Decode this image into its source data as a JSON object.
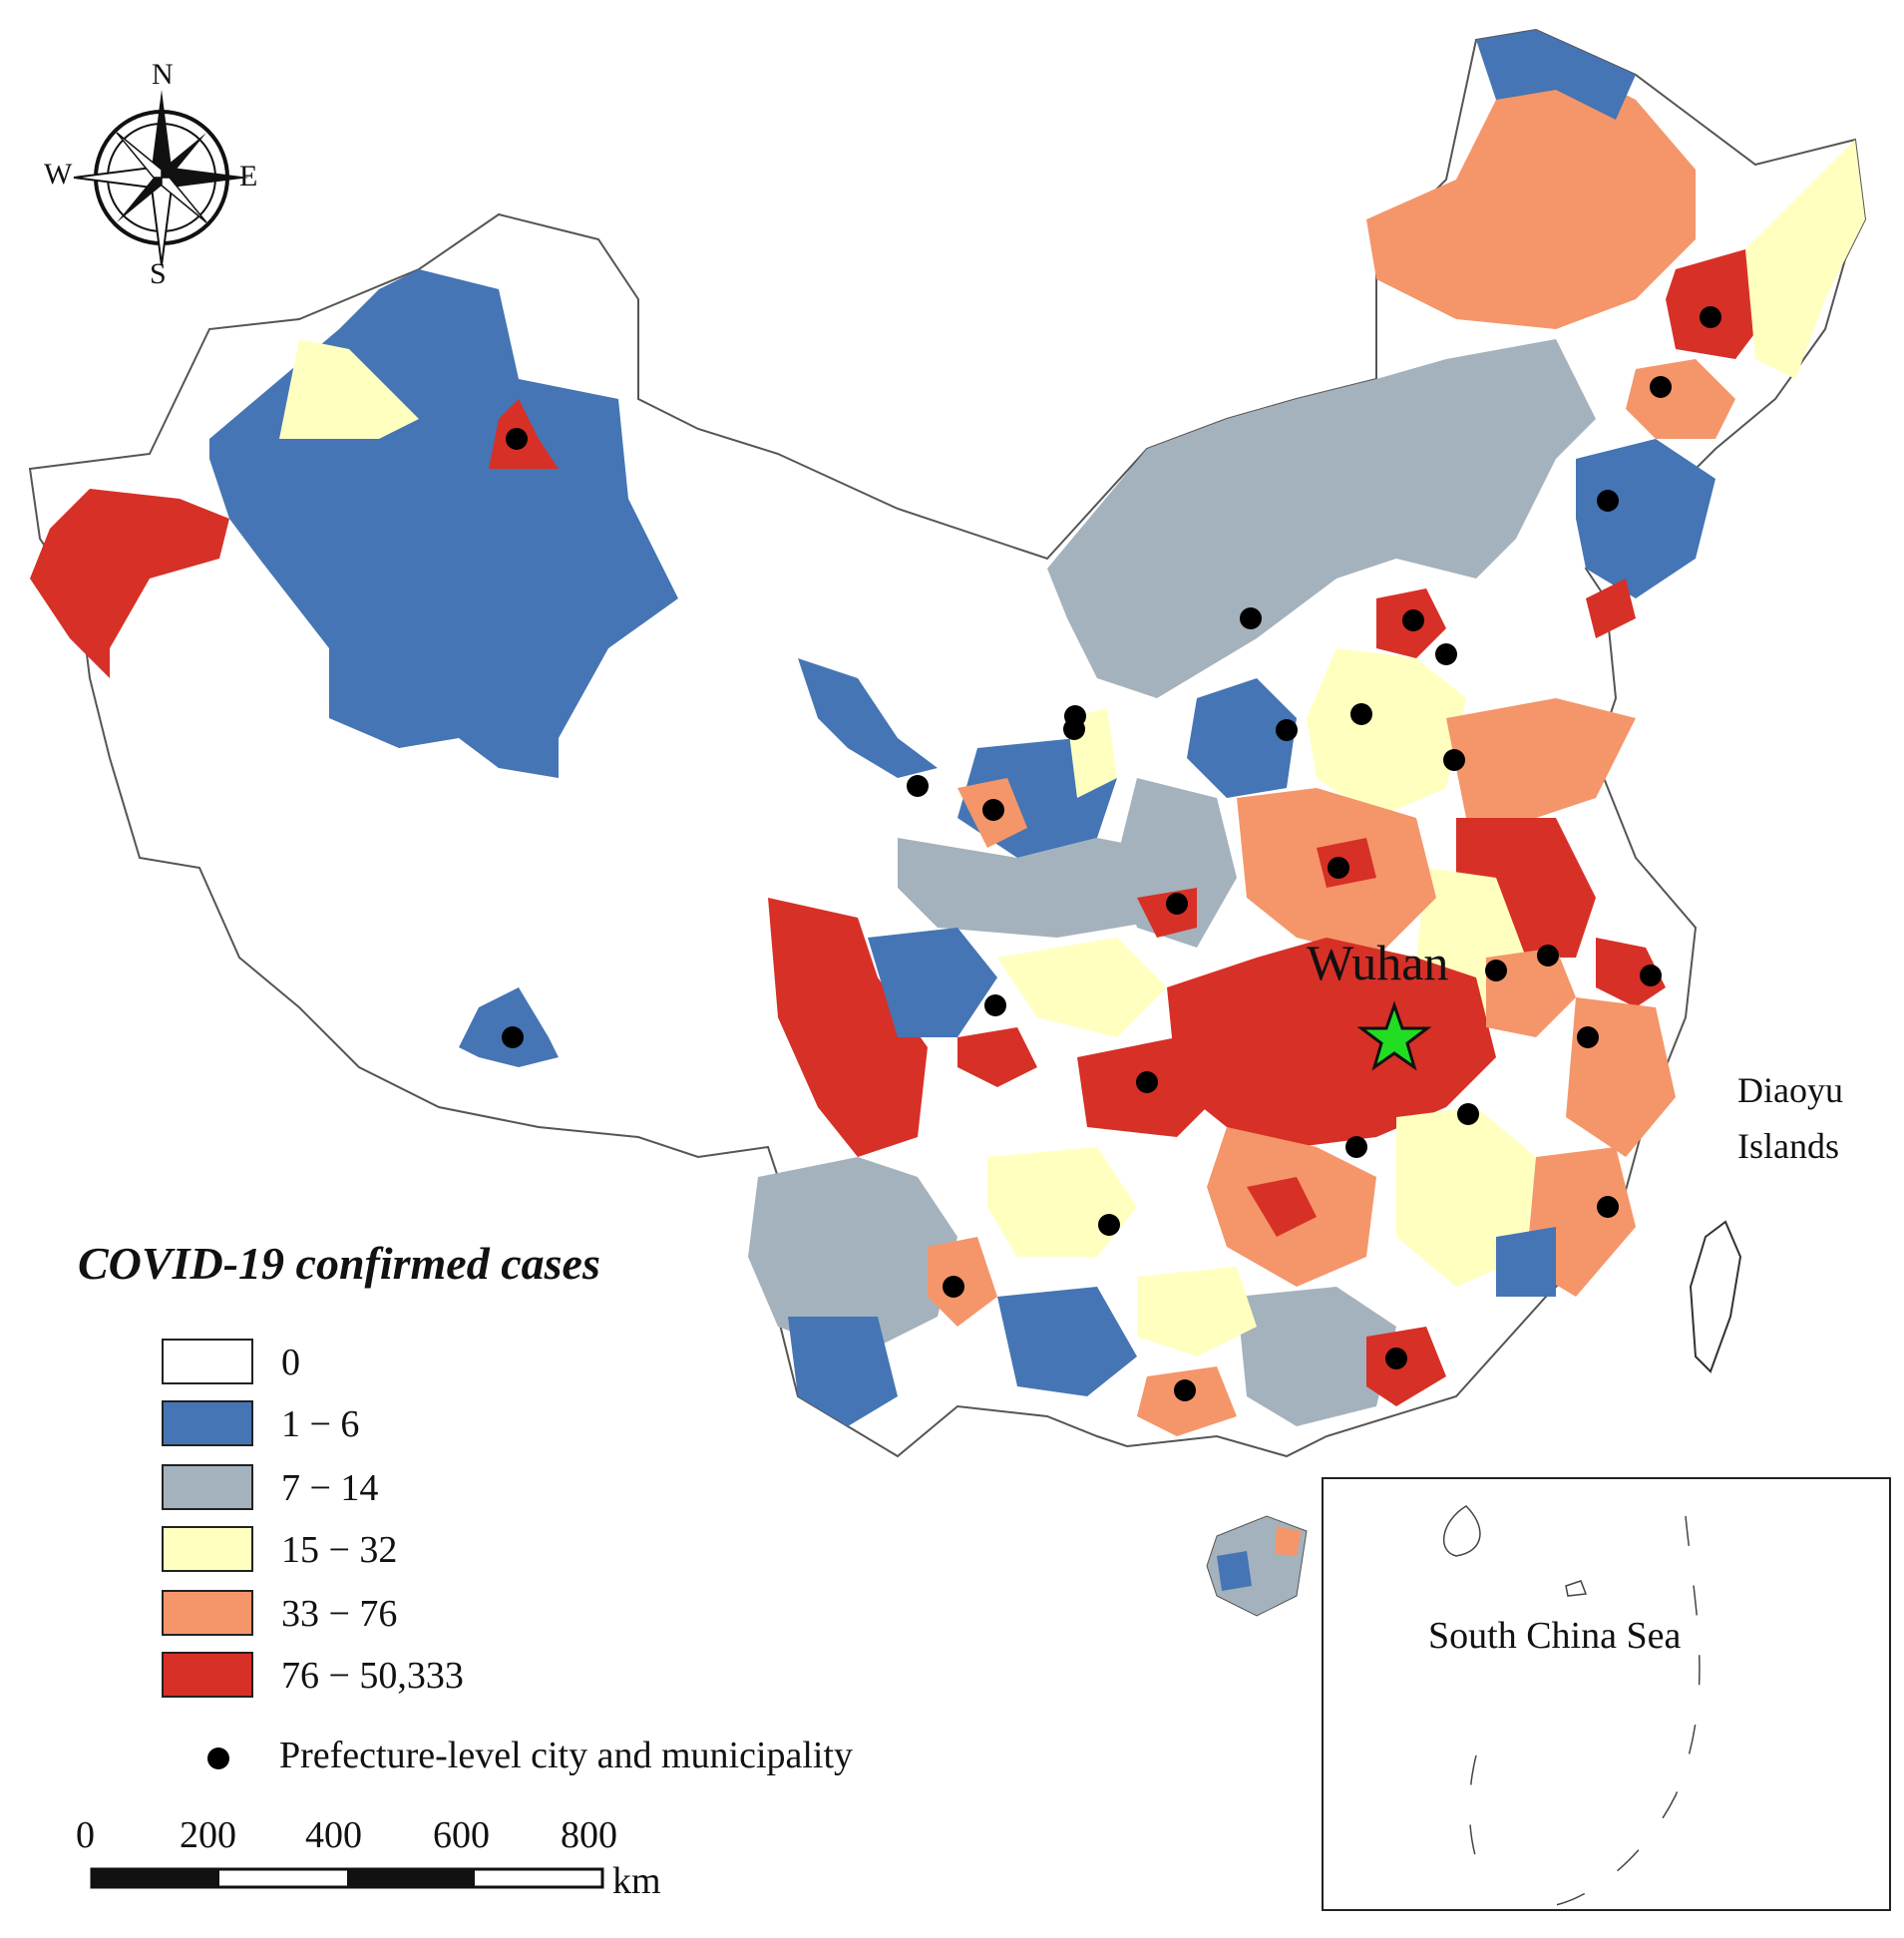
{
  "compass": {
    "north": "N",
    "south": "S",
    "east": "E",
    "west": "W"
  },
  "labels": {
    "wuhan": "Wuhan",
    "diaoyu_line1": "Diaoyu",
    "diaoyu_line2": "Islands",
    "south_china_sea": "South China Sea"
  },
  "legend": {
    "title": "COVID-19 confirmed cases",
    "classes": [
      {
        "label": "0",
        "color": "#ffffff"
      },
      {
        "label": "1 − 6",
        "color": "#4575b4"
      },
      {
        "label": "7 − 14",
        "color": "#a4b2bd"
      },
      {
        "label": "15 − 32",
        "color": "#ffffbf"
      },
      {
        "label": "33 − 76",
        "color": "#f4966a"
      },
      {
        "label": "76 − 50,333",
        "color": "#d73027"
      }
    ],
    "city_marker_label": "Prefecture-level city and municipality",
    "wuhan_marker_color": "#22dd22"
  },
  "scale_bar": {
    "ticks": [
      "0",
      "200",
      "400",
      "600",
      "800"
    ],
    "unit": "km"
  }
}
